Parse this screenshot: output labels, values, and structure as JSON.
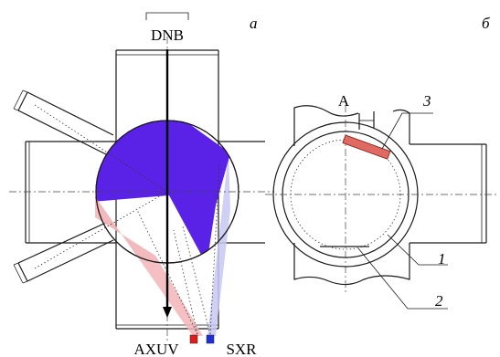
{
  "labels": {
    "panel_a": "a",
    "panel_b": "б",
    "dnb": "DNB",
    "axuv": "AXUV",
    "sxr": "SXR",
    "point_a": "A",
    "num_1": "1",
    "num_2": "2",
    "num_3": "3"
  },
  "colors": {
    "plasma_fan": "#5a22e6",
    "axuv_cone": "#f2b5b8",
    "sxr_cone": "#c8c8f4",
    "axuv_marker": "#e01b1b",
    "sxr_marker": "#1f2fd6",
    "element_3": "#e06a62"
  }
}
